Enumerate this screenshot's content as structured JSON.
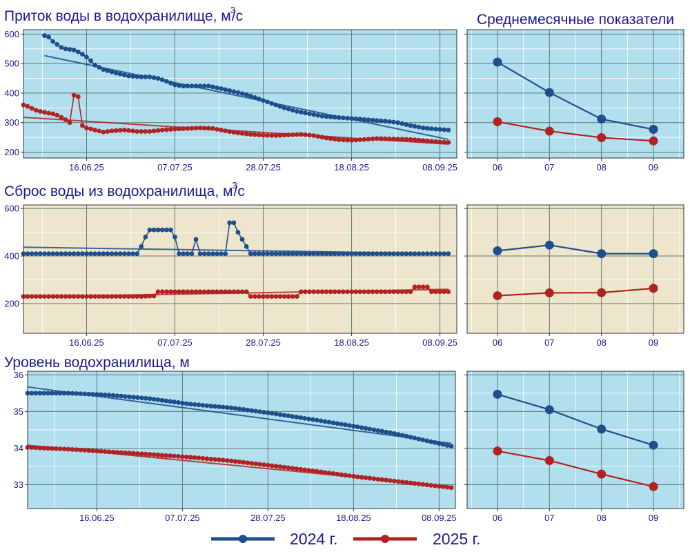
{
  "colors": {
    "y2024": "#1f4e8c",
    "y2025": "#b22222",
    "panel_blue": "#b2dfee",
    "panel_beige": "#ede6cc",
    "grid_major": "#5b7a74",
    "text": "#1a1a8c"
  },
  "legend": [
    {
      "label": "2024 г.",
      "color": "#1f4e8c"
    },
    {
      "label": "2025 г.",
      "color": "#b22222"
    }
  ],
  "chart_data": [
    {
      "id": "inflow",
      "type": "line",
      "title": "Приток воды в водохранилище, м",
      "title_sup": "3",
      "title_suffix": "/с",
      "x_type": "date",
      "x_ticks": [
        "16.06.25",
        "07.07.25",
        "28.07.25",
        "18.08.25",
        "08.09.25"
      ],
      "xlim": [
        "2025-06-01",
        "2025-09-12"
      ],
      "y_ticks": [
        200,
        300,
        400,
        500,
        600
      ],
      "ylim": [
        180,
        615
      ],
      "background": "#b2dfee",
      "grid": true,
      "series": [
        {
          "year": "2024",
          "color": "#1f4e8c",
          "points": [
            [
              "2025-06-06",
              595
            ],
            [
              "2025-06-07",
              590
            ],
            [
              "2025-06-08",
              575
            ],
            [
              "2025-06-09",
              565
            ],
            [
              "2025-06-10",
              555
            ],
            [
              "2025-06-11",
              550
            ],
            [
              "2025-06-12",
              548
            ],
            [
              "2025-06-13",
              546
            ],
            [
              "2025-06-14",
              540
            ],
            [
              "2025-06-15",
              532
            ],
            [
              "2025-06-16",
              522
            ],
            [
              "2025-06-17",
              510
            ],
            [
              "2025-06-18",
              495
            ],
            [
              "2025-06-20",
              480
            ],
            [
              "2025-06-23",
              468
            ],
            [
              "2025-06-26",
              458
            ],
            [
              "2025-06-29",
              455
            ],
            [
              "2025-07-01",
              455
            ],
            [
              "2025-07-03",
              450
            ],
            [
              "2025-07-05",
              440
            ],
            [
              "2025-07-07",
              428
            ],
            [
              "2025-07-09",
              424
            ],
            [
              "2025-07-12",
              424
            ],
            [
              "2025-07-15",
              424
            ],
            [
              "2025-07-18",
              415
            ],
            [
              "2025-07-21",
              405
            ],
            [
              "2025-07-24",
              395
            ],
            [
              "2025-07-27",
              380
            ],
            [
              "2025-07-30",
              365
            ],
            [
              "2025-08-02",
              350
            ],
            [
              "2025-08-05",
              338
            ],
            [
              "2025-08-08",
              330
            ],
            [
              "2025-08-11",
              322
            ],
            [
              "2025-08-14",
              318
            ],
            [
              "2025-08-17",
              315
            ],
            [
              "2025-08-20",
              312
            ],
            [
              "2025-08-23",
              308
            ],
            [
              "2025-08-26",
              305
            ],
            [
              "2025-08-29",
              300
            ],
            [
              "2025-09-01",
              290
            ],
            [
              "2025-09-04",
              282
            ],
            [
              "2025-09-07",
              278
            ],
            [
              "2025-09-10",
              275
            ]
          ],
          "trend": [
            [
              "2025-06-06",
              527
            ],
            [
              "2025-09-10",
              243
            ]
          ]
        },
        {
          "year": "2025",
          "color": "#b22222",
          "points": [
            [
              "2025-06-01",
              360
            ],
            [
              "2025-06-02",
              355
            ],
            [
              "2025-06-03",
              348
            ],
            [
              "2025-06-04",
              342
            ],
            [
              "2025-06-05",
              338
            ],
            [
              "2025-06-06",
              335
            ],
            [
              "2025-06-07",
              332
            ],
            [
              "2025-06-08",
              330
            ],
            [
              "2025-06-09",
              325
            ],
            [
              "2025-06-10",
              318
            ],
            [
              "2025-06-11",
              310
            ],
            [
              "2025-06-12",
              300
            ],
            [
              "2025-06-13",
              393
            ],
            [
              "2025-06-14",
              388
            ],
            [
              "2025-06-15",
              290
            ],
            [
              "2025-06-16",
              282
            ],
            [
              "2025-06-18",
              275
            ],
            [
              "2025-06-20",
              268
            ],
            [
              "2025-06-22",
              272
            ],
            [
              "2025-06-25",
              275
            ],
            [
              "2025-06-28",
              270
            ],
            [
              "2025-07-01",
              270
            ],
            [
              "2025-07-04",
              275
            ],
            [
              "2025-07-07",
              278
            ],
            [
              "2025-07-10",
              280
            ],
            [
              "2025-07-13",
              282
            ],
            [
              "2025-07-16",
              280
            ],
            [
              "2025-07-19",
              272
            ],
            [
              "2025-07-22",
              265
            ],
            [
              "2025-07-25",
              260
            ],
            [
              "2025-07-28",
              257
            ],
            [
              "2025-07-31",
              256
            ],
            [
              "2025-08-03",
              258
            ],
            [
              "2025-08-06",
              260
            ],
            [
              "2025-08-09",
              256
            ],
            [
              "2025-08-12",
              248
            ],
            [
              "2025-08-15",
              242
            ],
            [
              "2025-08-18",
              240
            ],
            [
              "2025-08-21",
              243
            ],
            [
              "2025-08-24",
              246
            ],
            [
              "2025-08-27",
              245
            ],
            [
              "2025-08-30",
              244
            ],
            [
              "2025-09-02",
              242
            ],
            [
              "2025-09-05",
              238
            ],
            [
              "2025-09-08",
              234
            ],
            [
              "2025-09-10",
              233
            ]
          ],
          "trend": [
            [
              "2025-06-01",
              318
            ],
            [
              "2025-09-10",
              227
            ]
          ]
        }
      ]
    },
    {
      "id": "inflow_monthly",
      "type": "line",
      "title": "Среднемесячные показатели",
      "categories": [
        "06",
        "07",
        "08",
        "09"
      ],
      "ylim": [
        180,
        615
      ],
      "background": "#b2dfee",
      "grid": true,
      "series": [
        {
          "year": "2024",
          "color": "#1f4e8c",
          "values": [
            505,
            402,
            312,
            277
          ]
        },
        {
          "year": "2025",
          "color": "#b22222",
          "values": [
            303,
            271,
            249,
            238
          ]
        }
      ]
    },
    {
      "id": "outflow",
      "type": "line",
      "title": "Сброс воды из водохранилища, м",
      "title_sup": "3",
      "title_suffix": "/с",
      "x_type": "date",
      "x_ticks": [
        "16.06.25",
        "07.07.25",
        "28.07.25",
        "18.08.25",
        "08.09.25"
      ],
      "xlim": [
        "2025-06-01",
        "2025-09-12"
      ],
      "y_ticks": [
        200,
        400,
        600
      ],
      "ylim": [
        75,
        615
      ],
      "background": "#ede6cc",
      "grid": true,
      "series": [
        {
          "year": "2024",
          "color": "#1f4e8c",
          "points": [
            [
              "2025-06-01",
              410
            ],
            [
              "2025-06-10",
              410
            ],
            [
              "2025-06-20",
              410
            ],
            [
              "2025-06-28",
              410
            ],
            [
              "2025-06-29",
              440
            ],
            [
              "2025-06-30",
              480
            ],
            [
              "2025-07-01",
              510
            ],
            [
              "2025-07-03",
              510
            ],
            [
              "2025-07-05",
              510
            ],
            [
              "2025-07-06",
              510
            ],
            [
              "2025-07-07",
              480
            ],
            [
              "2025-07-08",
              410
            ],
            [
              "2025-07-11",
              410
            ],
            [
              "2025-07-12",
              470
            ],
            [
              "2025-07-13",
              410
            ],
            [
              "2025-07-16",
              410
            ],
            [
              "2025-07-19",
              410
            ],
            [
              "2025-07-20",
              540
            ],
            [
              "2025-07-21",
              540
            ],
            [
              "2025-07-22",
              500
            ],
            [
              "2025-07-23",
              470
            ],
            [
              "2025-07-24",
              440
            ],
            [
              "2025-07-25",
              410
            ],
            [
              "2025-07-31",
              410
            ],
            [
              "2025-08-07",
              410
            ],
            [
              "2025-08-14",
              410
            ],
            [
              "2025-08-21",
              410
            ],
            [
              "2025-08-28",
              410
            ],
            [
              "2025-09-04",
              410
            ],
            [
              "2025-09-10",
              410
            ]
          ],
          "trend": [
            [
              "2025-06-01",
              437
            ],
            [
              "2025-09-10",
              410
            ]
          ]
        },
        {
          "year": "2025",
          "color": "#b22222",
          "points": [
            [
              "2025-06-01",
              230
            ],
            [
              "2025-06-08",
              230
            ],
            [
              "2025-06-15",
              230
            ],
            [
              "2025-06-22",
              230
            ],
            [
              "2025-06-29",
              230
            ],
            [
              "2025-07-02",
              232
            ],
            [
              "2025-07-03",
              250
            ],
            [
              "2025-07-10",
              250
            ],
            [
              "2025-07-17",
              250
            ],
            [
              "2025-07-24",
              250
            ],
            [
              "2025-07-25",
              230
            ],
            [
              "2025-07-31",
              230
            ],
            [
              "2025-08-05",
              230
            ],
            [
              "2025-08-06",
              250
            ],
            [
              "2025-08-13",
              250
            ],
            [
              "2025-08-20",
              250
            ],
            [
              "2025-08-27",
              250
            ],
            [
              "2025-09-01",
              250
            ],
            [
              "2025-09-02",
              270
            ],
            [
              "2025-09-05",
              270
            ],
            [
              "2025-09-06",
              250
            ],
            [
              "2025-09-10",
              250
            ]
          ],
          "trend": [
            [
              "2025-06-01",
              228
            ],
            [
              "2025-09-10",
              260
            ]
          ]
        }
      ]
    },
    {
      "id": "outflow_monthly",
      "type": "line",
      "categories": [
        "06",
        "07",
        "08",
        "09"
      ],
      "ylim": [
        75,
        615
      ],
      "background": "#ede6cc",
      "grid": true,
      "series": [
        {
          "year": "2024",
          "color": "#1f4e8c",
          "values": [
            422,
            446,
            410,
            410
          ]
        },
        {
          "year": "2025",
          "color": "#b22222",
          "values": [
            233,
            245,
            246,
            264
          ]
        }
      ]
    },
    {
      "id": "level",
      "type": "line",
      "title": "Уровень водохранилища, м",
      "x_type": "date",
      "x_ticks": [
        "16.06.25",
        "07.07.25",
        "28.07.25",
        "18.08.25",
        "08.09.25"
      ],
      "xlim": [
        "2025-05-30",
        "2025-09-12"
      ],
      "y_ticks": [
        33,
        34,
        35,
        36
      ],
      "ylim": [
        32.35,
        36.1
      ],
      "background": "#b2dfee",
      "grid": true,
      "series": [
        {
          "year": "2024",
          "color": "#1f4e8c",
          "points": [
            [
              "2025-05-30",
              35.5
            ],
            [
              "2025-06-09",
              35.5
            ],
            [
              "2025-06-19",
              35.45
            ],
            [
              "2025-06-29",
              35.35
            ],
            [
              "2025-07-09",
              35.2
            ],
            [
              "2025-07-19",
              35.1
            ],
            [
              "2025-07-29",
              34.95
            ],
            [
              "2025-08-08",
              34.78
            ],
            [
              "2025-08-18",
              34.6
            ],
            [
              "2025-08-28",
              34.4
            ],
            [
              "2025-09-11",
              34.05
            ]
          ],
          "trend": [
            [
              "2025-05-30",
              35.67
            ],
            [
              "2025-09-11",
              34.13
            ]
          ]
        },
        {
          "year": "2025",
          "color": "#b22222",
          "points": [
            [
              "2025-05-30",
              34.02
            ],
            [
              "2025-06-09",
              33.97
            ],
            [
              "2025-06-19",
              33.9
            ],
            [
              "2025-06-29",
              33.83
            ],
            [
              "2025-07-09",
              33.75
            ],
            [
              "2025-07-19",
              33.65
            ],
            [
              "2025-07-29",
              33.52
            ],
            [
              "2025-08-08",
              33.38
            ],
            [
              "2025-08-18",
              33.23
            ],
            [
              "2025-08-28",
              33.1
            ],
            [
              "2025-09-11",
              32.92
            ]
          ],
          "trend": [
            [
              "2025-05-30",
              34.08
            ],
            [
              "2025-09-11",
              32.95
            ]
          ]
        }
      ]
    },
    {
      "id": "level_monthly",
      "type": "line",
      "categories": [
        "06",
        "07",
        "08",
        "09"
      ],
      "ylim": [
        32.35,
        36.1
      ],
      "background": "#b2dfee",
      "grid": true,
      "series": [
        {
          "year": "2024",
          "color": "#1f4e8c",
          "values": [
            35.47,
            35.05,
            34.52,
            34.08
          ]
        },
        {
          "year": "2025",
          "color": "#b22222",
          "values": [
            33.92,
            33.66,
            33.29,
            32.95
          ]
        }
      ]
    }
  ]
}
